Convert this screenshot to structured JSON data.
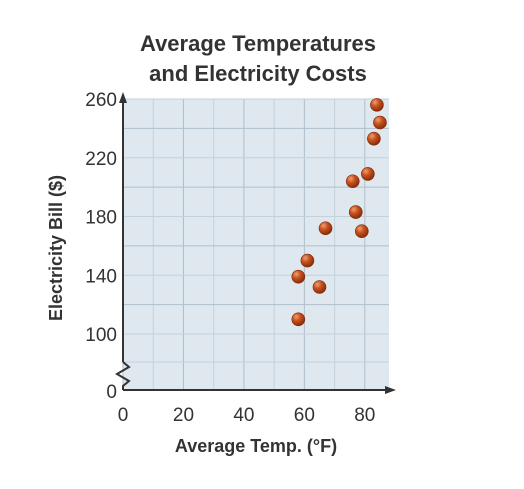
{
  "chart_data": {
    "type": "scatter",
    "title": [
      "Average Temperatures",
      "and Electricity Costs"
    ],
    "xlabel": "Average Temp. (°F)",
    "ylabel": "Electricity Bill ($)",
    "xlim": [
      0,
      88
    ],
    "ylim": [
      90,
      260
    ],
    "y_axis_break": true,
    "x_ticks": [
      0,
      20,
      40,
      60,
      80
    ],
    "y_ticks": [
      100,
      140,
      180,
      220,
      260
    ],
    "y_zero_label": "0",
    "grid": true,
    "point_color": "#b8451a",
    "points": [
      {
        "x": 58,
        "y": 110
      },
      {
        "x": 58,
        "y": 139
      },
      {
        "x": 61,
        "y": 150
      },
      {
        "x": 65,
        "y": 132
      },
      {
        "x": 67,
        "y": 172
      },
      {
        "x": 76,
        "y": 204
      },
      {
        "x": 77,
        "y": 183
      },
      {
        "x": 79,
        "y": 170
      },
      {
        "x": 81,
        "y": 209
      },
      {
        "x": 83,
        "y": 233
      },
      {
        "x": 84,
        "y": 256
      },
      {
        "x": 85,
        "y": 244
      }
    ]
  }
}
